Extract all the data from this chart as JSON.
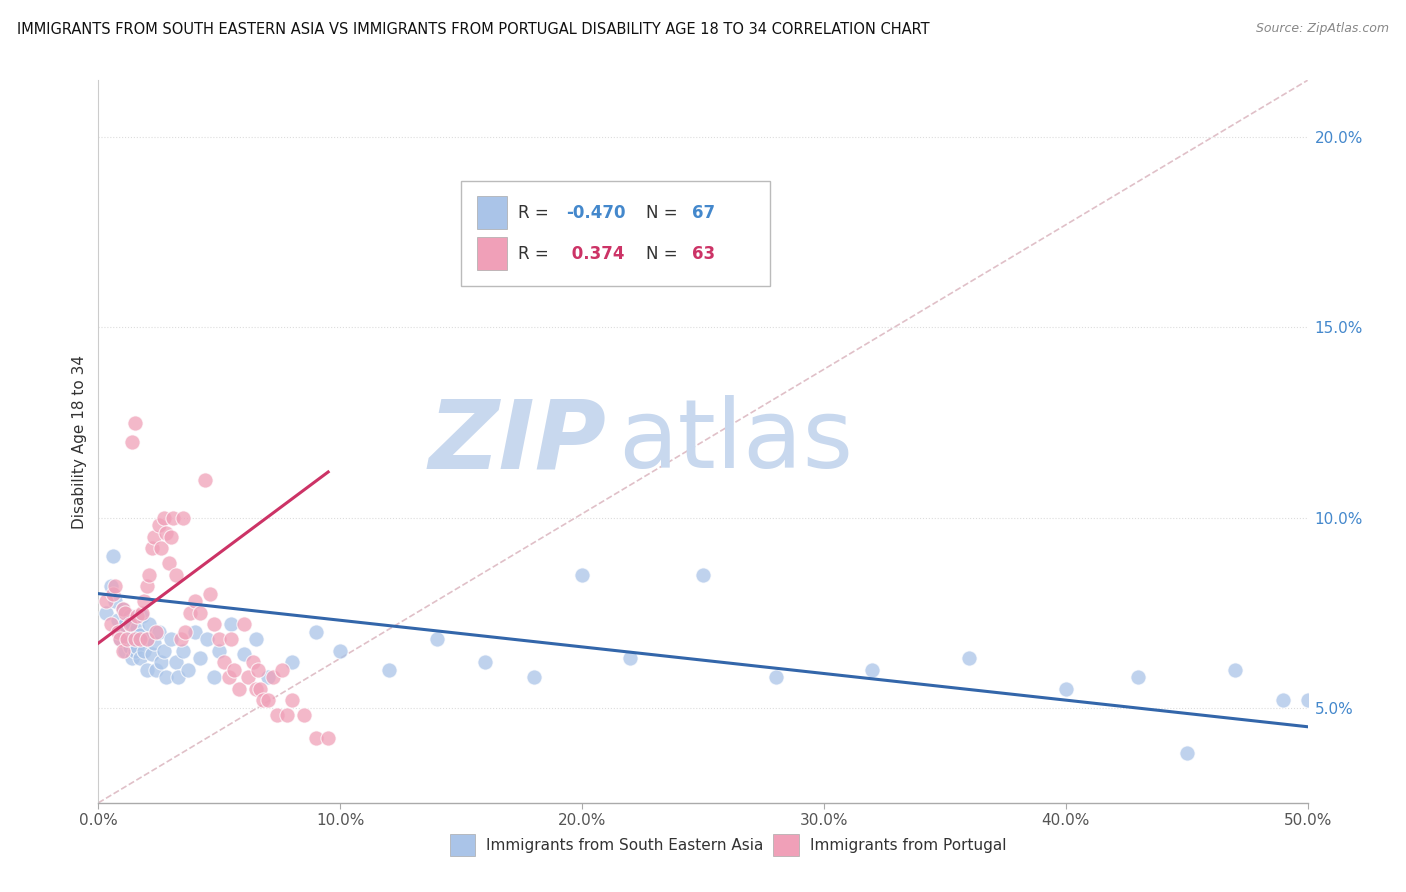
{
  "title": "IMMIGRANTS FROM SOUTH EASTERN ASIA VS IMMIGRANTS FROM PORTUGAL DISABILITY AGE 18 TO 34 CORRELATION CHART",
  "source": "Source: ZipAtlas.com",
  "ylabel": "Disability Age 18 to 34",
  "ylabel_right_ticks": [
    "5.0%",
    "10.0%",
    "15.0%",
    "20.0%"
  ],
  "ylabel_right_vals": [
    0.05,
    0.1,
    0.15,
    0.2
  ],
  "xlim": [
    0.0,
    0.5
  ],
  "ylim": [
    0.025,
    0.215
  ],
  "xticks": [
    0.0,
    0.1,
    0.2,
    0.3,
    0.4,
    0.5
  ],
  "xtick_labels": [
    "0.0%",
    "10.0%",
    "20.0%",
    "30.0%",
    "40.0%",
    "50.0%"
  ],
  "legend_blue_r": "-0.470",
  "legend_blue_n": "67",
  "legend_pink_r": "0.374",
  "legend_pink_n": "63",
  "blue_color": "#aac4e8",
  "pink_color": "#f0a0b8",
  "blue_line_color": "#3366aa",
  "pink_line_color": "#cc3366",
  "ref_line_color": "#e0c0c8",
  "watermark_zip_color": "#c8d8ee",
  "watermark_atlas_color": "#c8d8ee",
  "background_color": "#ffffff",
  "blue_scatter_x": [
    0.003,
    0.005,
    0.006,
    0.007,
    0.008,
    0.009,
    0.01,
    0.01,
    0.011,
    0.011,
    0.012,
    0.012,
    0.013,
    0.013,
    0.014,
    0.014,
    0.015,
    0.015,
    0.016,
    0.016,
    0.017,
    0.017,
    0.018,
    0.019,
    0.02,
    0.02,
    0.021,
    0.022,
    0.023,
    0.024,
    0.025,
    0.026,
    0.027,
    0.028,
    0.03,
    0.032,
    0.033,
    0.035,
    0.037,
    0.04,
    0.042,
    0.045,
    0.048,
    0.05,
    0.055,
    0.06,
    0.065,
    0.07,
    0.08,
    0.09,
    0.1,
    0.12,
    0.14,
    0.16,
    0.18,
    0.2,
    0.22,
    0.25,
    0.28,
    0.32,
    0.36,
    0.4,
    0.43,
    0.45,
    0.47,
    0.49,
    0.5
  ],
  "blue_scatter_y": [
    0.075,
    0.082,
    0.09,
    0.078,
    0.073,
    0.068,
    0.076,
    0.07,
    0.072,
    0.065,
    0.071,
    0.068,
    0.074,
    0.066,
    0.072,
    0.063,
    0.07,
    0.065,
    0.071,
    0.066,
    0.069,
    0.063,
    0.074,
    0.065,
    0.068,
    0.06,
    0.072,
    0.064,
    0.067,
    0.06,
    0.07,
    0.062,
    0.065,
    0.058,
    0.068,
    0.062,
    0.058,
    0.065,
    0.06,
    0.07,
    0.063,
    0.068,
    0.058,
    0.065,
    0.072,
    0.064,
    0.068,
    0.058,
    0.062,
    0.07,
    0.065,
    0.06,
    0.068,
    0.062,
    0.058,
    0.085,
    0.063,
    0.085,
    0.058,
    0.06,
    0.063,
    0.055,
    0.058,
    0.038,
    0.06,
    0.052,
    0.052
  ],
  "pink_scatter_x": [
    0.003,
    0.005,
    0.006,
    0.007,
    0.008,
    0.009,
    0.01,
    0.01,
    0.011,
    0.012,
    0.013,
    0.014,
    0.015,
    0.015,
    0.016,
    0.017,
    0.018,
    0.019,
    0.02,
    0.02,
    0.021,
    0.022,
    0.023,
    0.024,
    0.025,
    0.026,
    0.027,
    0.028,
    0.029,
    0.03,
    0.031,
    0.032,
    0.034,
    0.035,
    0.036,
    0.038,
    0.04,
    0.042,
    0.044,
    0.046,
    0.048,
    0.05,
    0.052,
    0.054,
    0.055,
    0.056,
    0.058,
    0.06,
    0.062,
    0.064,
    0.065,
    0.066,
    0.067,
    0.068,
    0.07,
    0.072,
    0.074,
    0.076,
    0.078,
    0.08,
    0.085,
    0.09,
    0.095
  ],
  "pink_scatter_y": [
    0.078,
    0.072,
    0.08,
    0.082,
    0.07,
    0.068,
    0.076,
    0.065,
    0.075,
    0.068,
    0.072,
    0.12,
    0.125,
    0.068,
    0.074,
    0.068,
    0.075,
    0.078,
    0.082,
    0.068,
    0.085,
    0.092,
    0.095,
    0.07,
    0.098,
    0.092,
    0.1,
    0.096,
    0.088,
    0.095,
    0.1,
    0.085,
    0.068,
    0.1,
    0.07,
    0.075,
    0.078,
    0.075,
    0.11,
    0.08,
    0.072,
    0.068,
    0.062,
    0.058,
    0.068,
    0.06,
    0.055,
    0.072,
    0.058,
    0.062,
    0.055,
    0.06,
    0.055,
    0.052,
    0.052,
    0.058,
    0.048,
    0.06,
    0.048,
    0.052,
    0.048,
    0.042,
    0.042
  ],
  "blue_trend_x": [
    0.0,
    0.5
  ],
  "blue_trend_y": [
    0.08,
    0.045
  ],
  "pink_trend_x": [
    0.0,
    0.095
  ],
  "pink_trend_y": [
    0.067,
    0.112
  ],
  "ref_line_x": [
    0.0,
    0.5
  ],
  "ref_line_y": [
    0.025,
    0.215
  ]
}
